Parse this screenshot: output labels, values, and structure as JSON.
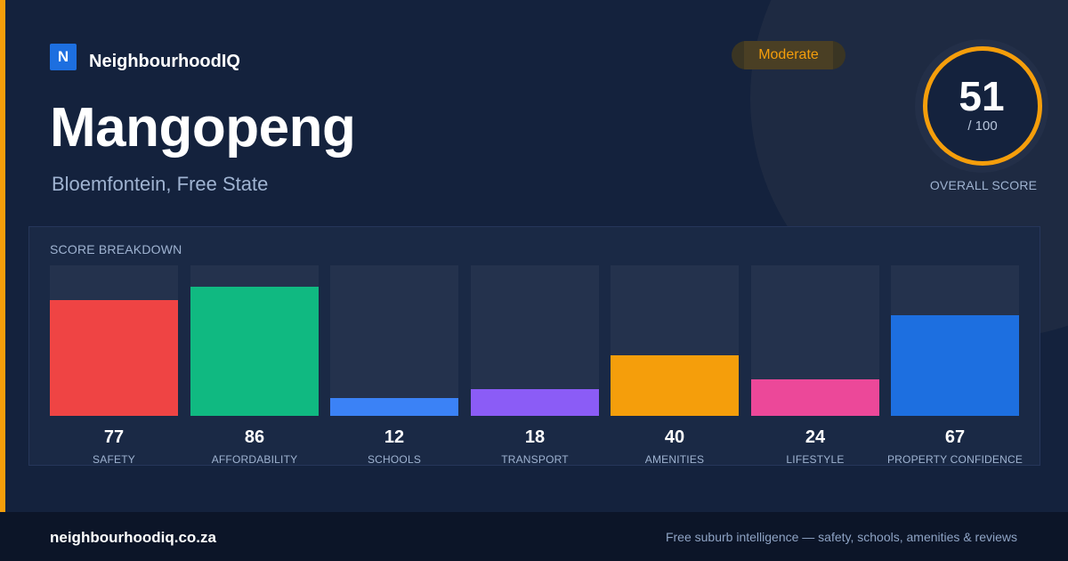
{
  "brand": {
    "logo_letter": "N",
    "name": "NeighbourhoodIQ"
  },
  "suburb": {
    "name": "Mangopeng",
    "location": "Bloemfontein, Free State"
  },
  "rating_badge": "Moderate",
  "overall": {
    "score": "51",
    "max": "/ 100",
    "label": "OVERALL SCORE"
  },
  "breakdown": {
    "title": "SCORE BREAKDOWN",
    "categories": [
      {
        "label": "SAFETY",
        "value": 77,
        "display": "77",
        "color": "#ef4444"
      },
      {
        "label": "AFFORDABILITY",
        "value": 86,
        "display": "86",
        "color": "#10b981"
      },
      {
        "label": "SCHOOLS",
        "value": 12,
        "display": "12",
        "color": "#3b82f6"
      },
      {
        "label": "TRANSPORT",
        "value": 18,
        "display": "18",
        "color": "#8b5cf6"
      },
      {
        "label": "AMENITIES",
        "value": 40,
        "display": "40",
        "color": "#f59e0b"
      },
      {
        "label": "LIFESTYLE",
        "value": 24,
        "display": "24",
        "color": "#ec4899"
      },
      {
        "label": "PROPERTY CONFIDENCE",
        "value": 67,
        "display": "67",
        "color": "#1d6fe0"
      }
    ]
  },
  "footer": {
    "url": "neighbourhoodiq.co.za",
    "tagline": "Free suburb intelligence — safety, schools, amenities & reviews"
  }
}
